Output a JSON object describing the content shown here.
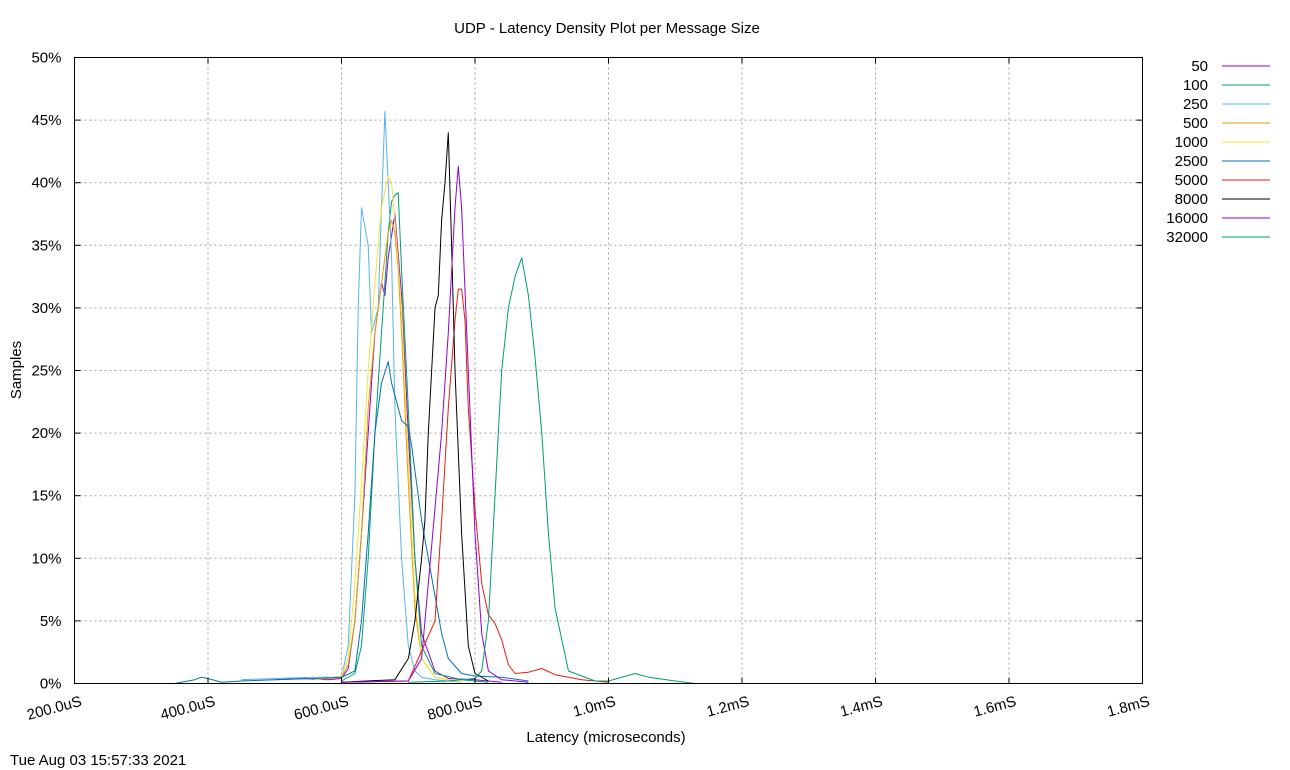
{
  "chart_data": {
    "type": "line",
    "title": "UDP - Latency Density Plot per Message Size",
    "xlabel": "Latency (microseconds)",
    "ylabel": "Samples",
    "xlim": [
      200,
      1800
    ],
    "ylim": [
      0,
      50
    ],
    "x_ticks": [
      {
        "value": 200,
        "label": "200.0uS"
      },
      {
        "value": 400,
        "label": "400.0uS"
      },
      {
        "value": 600,
        "label": "600.0uS"
      },
      {
        "value": 800,
        "label": "800.0uS"
      },
      {
        "value": 1000,
        "label": "1.0mS"
      },
      {
        "value": 1200,
        "label": "1.2mS"
      },
      {
        "value": 1400,
        "label": "1.4mS"
      },
      {
        "value": 1600,
        "label": "1.6mS"
      },
      {
        "value": 1800,
        "label": "1.8mS"
      }
    ],
    "y_ticks": [
      {
        "value": 0,
        "label": "0%"
      },
      {
        "value": 5,
        "label": "5%"
      },
      {
        "value": 10,
        "label": "10%"
      },
      {
        "value": 15,
        "label": "15%"
      },
      {
        "value": 20,
        "label": "20%"
      },
      {
        "value": 25,
        "label": "25%"
      },
      {
        "value": 30,
        "label": "30%"
      },
      {
        "value": 35,
        "label": "35%"
      },
      {
        "value": 40,
        "label": "40%"
      },
      {
        "value": 45,
        "label": "45%"
      },
      {
        "value": 50,
        "label": "50%"
      }
    ],
    "grid": true,
    "legend_position": "outside-right-top",
    "timestamp": "Tue Aug 03 15:57:33 2021",
    "series": [
      {
        "name": "50",
        "color": "#9400d3",
        "x": [
          500,
          540,
          580,
          600,
          610,
          620,
          630,
          640,
          650,
          660,
          665,
          670,
          680,
          690,
          700,
          710,
          720,
          740,
          760,
          800,
          840
        ],
        "y": [
          0.3,
          0.4,
          0.3,
          0.4,
          1.2,
          5,
          12,
          20,
          28,
          32,
          31,
          34,
          37.5,
          31,
          20,
          10,
          4,
          1,
          0.4,
          0.3,
          0.1
        ]
      },
      {
        "name": "100",
        "color": "#009e73",
        "x": [
          600,
          620,
          630,
          640,
          650,
          660,
          665,
          670,
          675,
          680,
          685,
          690,
          700,
          710,
          720,
          740,
          780,
          820
        ],
        "y": [
          0.2,
          0.8,
          3,
          10,
          20,
          28,
          32,
          36,
          38.5,
          39,
          39.2,
          33,
          22,
          10,
          3,
          0.8,
          0.3,
          0.1
        ]
      },
      {
        "name": "250",
        "color": "#56b4e9",
        "x": [
          450,
          500,
          560,
          600,
          610,
          620,
          625,
          630,
          640,
          645,
          650,
          655,
          660,
          665,
          670,
          675,
          680,
          690,
          700,
          710,
          720,
          740,
          780
        ],
        "y": [
          0.3,
          0.4,
          0.5,
          0.5,
          3,
          15,
          30,
          38,
          35,
          28,
          29,
          30,
          38,
          45.7,
          40,
          34,
          22,
          10,
          3,
          1,
          0.5,
          0.3,
          0.1
        ]
      },
      {
        "name": "500",
        "color": "#e69f00",
        "x": [
          560,
          600,
          610,
          620,
          630,
          640,
          650,
          660,
          670,
          675,
          680,
          685,
          690,
          700,
          710,
          720,
          740,
          780
        ],
        "y": [
          0.3,
          0.5,
          1.5,
          5,
          12,
          22,
          28,
          32,
          36,
          37,
          36,
          33,
          28,
          16,
          6,
          2,
          0.5,
          0.1
        ]
      },
      {
        "name": "1000",
        "color": "#f0e442",
        "x": [
          560,
          600,
          610,
          620,
          630,
          640,
          650,
          660,
          670,
          675,
          680,
          690,
          700,
          710,
          720,
          740,
          780
        ],
        "y": [
          0.3,
          0.6,
          2,
          8,
          16,
          25,
          32,
          38,
          40.5,
          40,
          37,
          30,
          18,
          7,
          2,
          0.5,
          0.1
        ]
      },
      {
        "name": "2500",
        "color": "#0072b2",
        "x": [
          350,
          380,
          390,
          400,
          420,
          450,
          500,
          560,
          600,
          620,
          630,
          640,
          650,
          660,
          670,
          675,
          680,
          690,
          700,
          705,
          710,
          720,
          730,
          740,
          750,
          760,
          780,
          800,
          840,
          880
        ],
        "y": [
          0,
          0.3,
          0.5,
          0.4,
          0.1,
          0.2,
          0.3,
          0.4,
          0.5,
          1,
          5,
          12,
          20,
          24,
          25.7,
          24,
          23,
          21,
          20.5,
          19,
          17,
          13,
          10,
          7,
          4,
          2,
          0.8,
          0.6,
          0.5,
          0.2
        ]
      },
      {
        "name": "5000",
        "color": "#e51e10",
        "x": [
          600,
          700,
          740,
          750,
          760,
          770,
          775,
          780,
          785,
          790,
          800,
          810,
          820,
          830,
          840,
          850,
          860,
          880,
          900,
          920,
          960,
          1000
        ],
        "y": [
          0.1,
          0.2,
          5,
          13,
          22,
          29,
          31.5,
          31.5,
          29,
          22,
          14,
          8,
          5.5,
          4.8,
          3.5,
          1.5,
          0.8,
          0.9,
          1.2,
          0.7,
          0.3,
          0.1
        ]
      },
      {
        "name": "8000",
        "color": "#000000",
        "x": [
          600,
          680,
          700,
          710,
          720,
          725,
          730,
          740,
          745,
          750,
          755,
          760,
          765,
          770,
          780,
          790,
          800,
          820
        ],
        "y": [
          0.1,
          0.3,
          2,
          5,
          10,
          13,
          20,
          30,
          31,
          37,
          40,
          44,
          35,
          25,
          12,
          3,
          0.8,
          0.2
        ]
      },
      {
        "name": "16000",
        "color": "#9400d3",
        "x": [
          600,
          700,
          720,
          730,
          740,
          750,
          760,
          770,
          775,
          780,
          790,
          800,
          810,
          820,
          840,
          880
        ],
        "y": [
          0.1,
          0.2,
          2,
          8,
          14,
          20,
          28,
          38,
          41.3,
          38,
          25,
          12,
          4,
          1,
          0.3,
          0.1
        ]
      },
      {
        "name": "32000",
        "color": "#009e73",
        "x": [
          700,
          760,
          800,
          810,
          820,
          830,
          840,
          850,
          860,
          870,
          880,
          890,
          900,
          910,
          920,
          940,
          980,
          1000,
          1040,
          1060,
          1100,
          1130
        ],
        "y": [
          0.1,
          0.2,
          0.4,
          1,
          5,
          15,
          25,
          30,
          32.5,
          34,
          31,
          26,
          20,
          12,
          6,
          1,
          0.2,
          0.2,
          0.8,
          0.5,
          0.2,
          0
        ]
      }
    ]
  }
}
